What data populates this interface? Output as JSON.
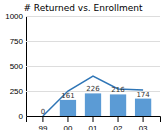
{
  "chart_data": {
    "type": "bar",
    "title": "# Returned vs. Enrollment",
    "categories": [
      "99",
      "00",
      "01",
      "02",
      "03"
    ],
    "series": [
      {
        "type": "bar",
        "color": "#5b9bd5",
        "values": [
          0,
          161,
          226,
          216,
          174
        ],
        "data_labels": true
      },
      {
        "type": "line",
        "color": "#2e75b6",
        "values": [
          0,
          250,
          400,
          270,
          260
        ]
      }
    ],
    "ylim": [
      0,
      1000
    ],
    "yticks": [
      0,
      250,
      500,
      750,
      1000
    ],
    "grid": true
  }
}
